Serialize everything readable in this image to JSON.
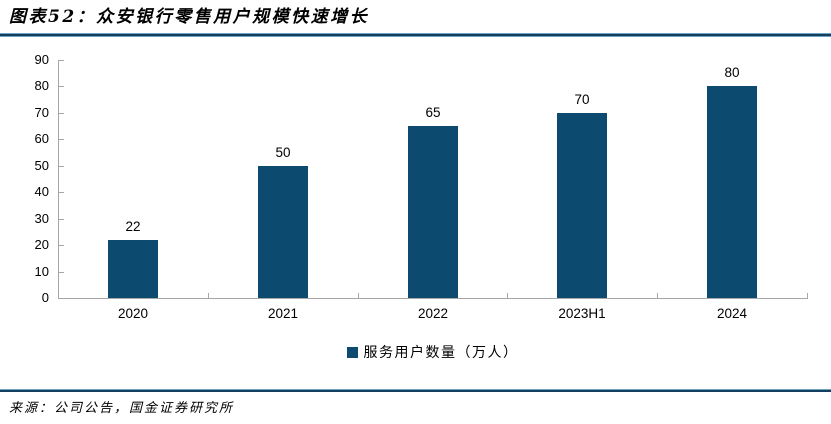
{
  "header": {
    "title": "图表52：众安银行零售用户规模快速增长"
  },
  "chart_data": {
    "type": "bar",
    "categories": [
      "2020",
      "2021",
      "2022",
      "2023H1",
      "2024"
    ],
    "values": [
      22,
      50,
      65,
      70,
      80
    ],
    "series_name": "服务用户数量（万人）",
    "title": "众安银行零售用户规模快速增长",
    "xlabel": "",
    "ylabel": "",
    "ylim": [
      0,
      90
    ],
    "ytick_step": 10,
    "grid": false,
    "data_labels": true,
    "legend_position": "bottom"
  },
  "legend": {
    "label": "服务用户数量（万人）"
  },
  "footer": {
    "source": "来源：公司公告，国金证券研究所"
  },
  "colors": {
    "bar": "#0C4B6F",
    "axis": "#A6A6A6",
    "rule_dark": "#123F5E",
    "rule_light": "#6FA3BE",
    "text": "#000000"
  }
}
